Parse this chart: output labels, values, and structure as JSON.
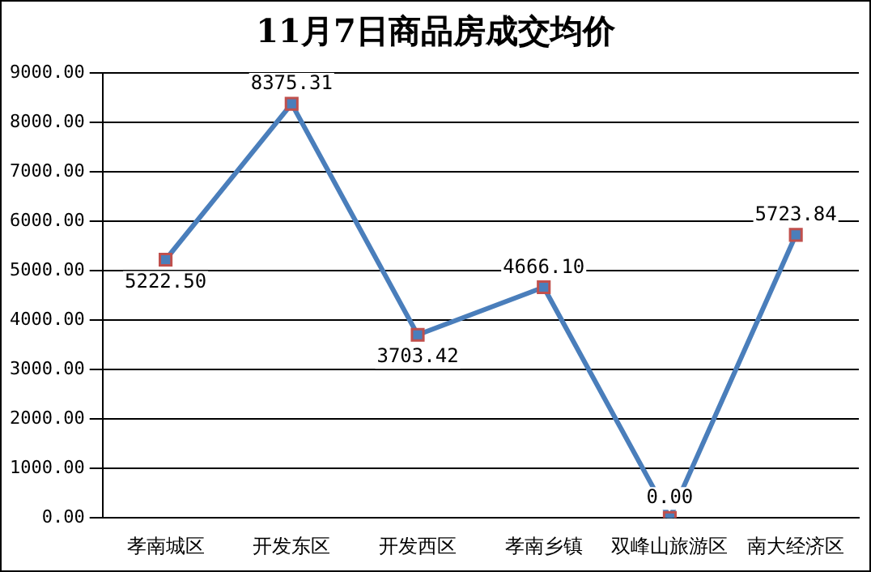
{
  "chart_data": {
    "type": "line",
    "title": "11月7日商品房成交均价",
    "categories": [
      "孝南城区",
      "开发东区",
      "开发西区",
      "孝南乡镇",
      "双峰山旅游区",
      "南大经济区"
    ],
    "series": [
      {
        "color": "#4a7ebb",
        "values": [
          5222.5,
          8375.31,
          3703.42,
          4666.1,
          0,
          5723.84
        ],
        "value_labels": [
          "5222.50",
          "8375.31",
          "3703.42",
          "4666.10",
          "0.00",
          "5723.84"
        ]
      }
    ],
    "ylim": [
      0,
      9000
    ],
    "yticks": [
      {
        "value": 0,
        "label": "0.00"
      },
      {
        "value": 1000,
        "label": "1000.00"
      },
      {
        "value": 2000,
        "label": "2000.00"
      },
      {
        "value": 3000,
        "label": "3000.00"
      },
      {
        "value": 4000,
        "label": "4000.00"
      },
      {
        "value": 5000,
        "label": "5000.00"
      },
      {
        "value": 6000,
        "label": "6000.00"
      },
      {
        "value": 7000,
        "label": "7000.00"
      },
      {
        "value": 8000,
        "label": "8000.00"
      },
      {
        "value": 9000,
        "label": "9000.00"
      }
    ],
    "grid": "y",
    "legend": false,
    "marker": "square",
    "line_style": "solid"
  }
}
